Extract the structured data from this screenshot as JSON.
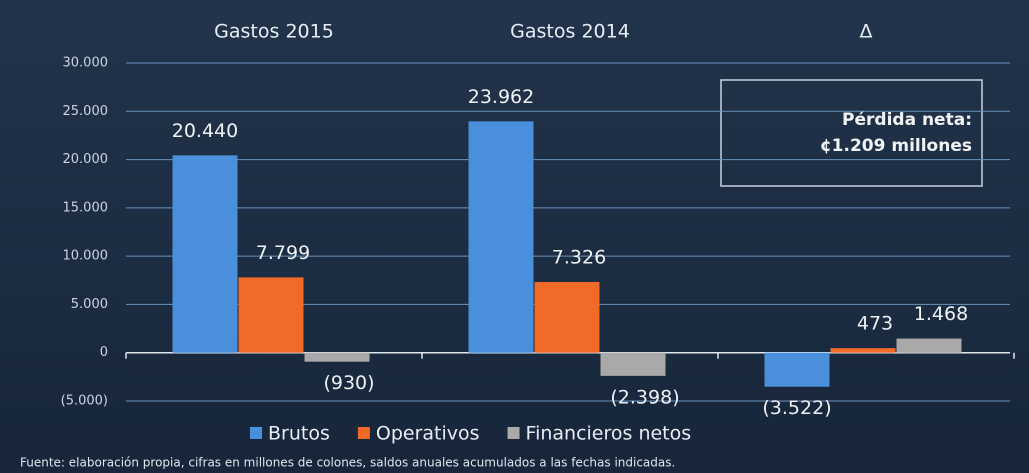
{
  "chart_data": {
    "type": "bar",
    "categories": [
      "Gastos 2015",
      "Gastos 2014",
      "Δ"
    ],
    "series": [
      {
        "name": "Brutos",
        "color": "#4a8fdb",
        "values": [
          20440,
          23962,
          -3522
        ],
        "value_labels": [
          "20.440",
          "23.962",
          "(3.522)"
        ]
      },
      {
        "name": "Operativos",
        "color": "#f06a28",
        "values": [
          7799,
          7326,
          473
        ],
        "value_labels": [
          "7.799",
          "7.326",
          "473"
        ]
      },
      {
        "name": "Financieros netos",
        "color": "#a9a9a9",
        "values": [
          -930,
          -2398,
          1468
        ],
        "value_labels": [
          "(930)",
          "(2.398)",
          "1.468"
        ]
      }
    ],
    "ylim": [
      -5000,
      30000
    ],
    "yticks": [
      {
        "value": -5000,
        "label": "(5.000)"
      },
      0,
      {
        "value": 5000,
        "label": "5.000"
      },
      {
        "value": 10000,
        "label": "10.000"
      },
      {
        "value": 15000,
        "label": "15.000"
      },
      {
        "value": 20000,
        "label": "20.000"
      },
      {
        "value": 25000,
        "label": "25.000"
      },
      {
        "value": 30000,
        "label": "30.000"
      }
    ],
    "grid": true,
    "annotation": [
      "Pérdida neta:",
      "¢1.209 millones"
    ],
    "source": "Fuente: elaboración propia, cifras en millones de colones, saldos anuales acumulados a las fechas indicadas."
  }
}
